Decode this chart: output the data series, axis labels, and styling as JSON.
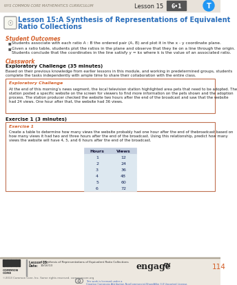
{
  "header_bg": "#e8e2da",
  "header_text": "NYS COMMON CORE MATHEMATICS CURRICULUM",
  "header_lesson": "Lesson 15",
  "header_grade_bg": "#555555",
  "header_grade_text": "G•6•1",
  "header_t_color": "#2196F3",
  "page_bg": "#ffffff",
  "title_line1": "Lesson 15:A Synthesis of Representations of Equivalent",
  "title_line2": "Ratio Collections",
  "title_color": "#2a6ebb",
  "section_outcomes": "Student Outcomes",
  "section_outcomes_color": "#d4602a",
  "bullet1": "Students associate with each ratio A : B the ordered pair (A, B) and plot it in the x - y coordinate plane.",
  "bullet2": "Given a ratio table, students plot the ratios in the plane and observe that they lie on a line through the origin.\nStudents conclude that the coordinates in the line satisfy y = kx where k is the value of an associated ratio.",
  "section_classwork": "Classwork",
  "section_classwork_color": "#d4602a",
  "section_expl_bold": "Exploratory Challenge (35 minutes)",
  "expl_para": "Based on their previous knowledge from earlier lessons in this module, and working in predetermined groups, students\ncomplete the tasks independently with ample time to share their collaboration with the entire class.",
  "box_title": "Exploratory Challenge",
  "box_title_color": "#d4602a",
  "box_border": "#c07050",
  "box_bg": "#ffffff",
  "box_text": "At the end of this morning’s news segment, the local television station highlighted area pets that need to be adopted. The\nstation posted a specific website on the screen for viewers to find more information on the pets shown and the adoption\nprocess. The station producer checked the website two hours after the end of the broadcast and saw that the website\nhad 24 views. One hour after that, the website had 36 views.",
  "exercise_section": "Exercise 1 (3 minutes)",
  "exercise_section_bold": "Exercise 1",
  "exercise_text": "Create a table to determine how many views the website probably had one hour after the end of thebroadcast based on\nhow many views it had two and three hours after the end of the broadcast. Using this relationship, predict how many\nviews the website will have 4, 5, and 6 hours after the end of the broadcast.",
  "table_headers": [
    "Hours",
    "Views"
  ],
  "table_data": [
    [
      1,
      12
    ],
    [
      2,
      24
    ],
    [
      3,
      36
    ],
    [
      4,
      48
    ],
    [
      5,
      60
    ],
    [
      6,
      72
    ]
  ],
  "table_header_bg": "#c5d0e0",
  "table_cell_bg": "#dde8f0",
  "table_border": "#8090a8",
  "footer_bg": "#ede8e0",
  "footer_lesson_label": "Lesson 15:",
  "footer_date_label": "Date:",
  "footer_lesson_text": "A Synthesis of Representations of Equivalent Ratio Collections",
  "footer_date_text": "10/16/13",
  "footer_page": "114",
  "footer_copy": "©2013 Common Core, Inc. Some rights reserved. commoncore.org",
  "footer_license_line1": "This work is licensed under a",
  "footer_license_line2": "Creative Commons Attribution-NonCommercial-ShareAlike 3.0 Unported License."
}
